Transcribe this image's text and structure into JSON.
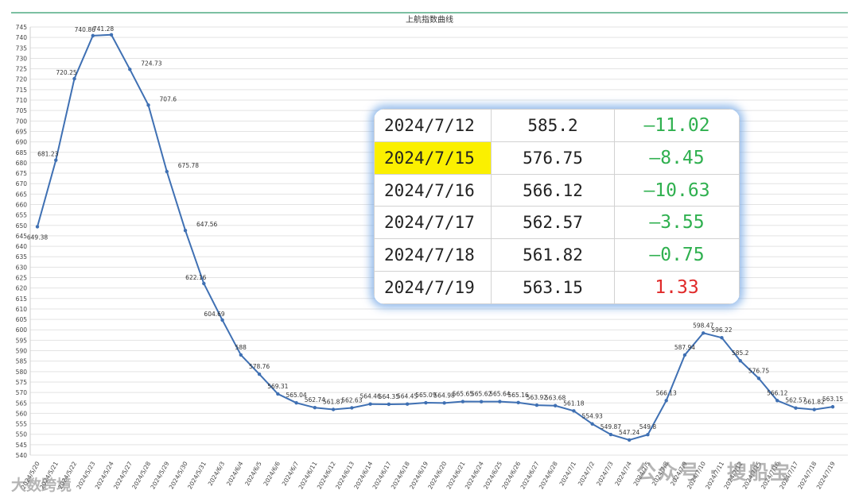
{
  "chart_data": {
    "type": "line",
    "title": "上航指数曲线",
    "y_axis": {
      "min": 540,
      "max": 745,
      "step": 5
    },
    "grid": true,
    "x": [
      "2024/5/20",
      "2024/5/21",
      "2024/5/22",
      "2024/5/23",
      "2024/5/24",
      "2024/5/27",
      "2024/5/28",
      "2024/5/29",
      "2024/5/30",
      "2024/5/31",
      "2024/6/3",
      "2024/6/4",
      "2024/6/5",
      "2024/6/6",
      "2024/6/7",
      "2024/6/11",
      "2024/6/12",
      "2024/6/13",
      "2024/6/14",
      "2024/6/17",
      "2024/6/18",
      "2024/6/19",
      "2024/6/20",
      "2024/6/21",
      "2024/6/24",
      "2024/6/25",
      "2024/6/26",
      "2024/6/27",
      "2024/6/28",
      "2024/7/1",
      "2024/7/2",
      "2024/7/3",
      "2024/7/4",
      "2024/7/5",
      "2024/7/8",
      "2024/7/9",
      "2024/7/10",
      "2024/7/11",
      "2024/7/12",
      "2024/7/15",
      "2024/7/16",
      "2024/7/17",
      "2024/7/18",
      "2024/7/19"
    ],
    "series": [
      {
        "color": "#3f70b3",
        "values": [
          649.38,
          681.23,
          720.25,
          740.86,
          741.28,
          724.73,
          707.6,
          675.78,
          647.56,
          622.16,
          604.69,
          588,
          578.76,
          569.31,
          565.04,
          562.74,
          561.87,
          562.63,
          564.46,
          564.35,
          564.45,
          565.09,
          564.98,
          565.65,
          565.62,
          565.64,
          565.16,
          563.92,
          563.68,
          561.18,
          554.93,
          549.87,
          547.24,
          549.8,
          566.13,
          587.94,
          598.47,
          596.22,
          585.2,
          576.75,
          566.12,
          562.57,
          561.82,
          563.15
        ],
        "labels": [
          "649.38",
          "681.23",
          "720.25",
          "740.86",
          "741.28",
          "724.73",
          "707.6",
          "675.78",
          "647.56",
          "622.16",
          "604.69",
          "588",
          "578.76",
          "569.31",
          "565.04",
          "562.74",
          "561.87",
          "562.63",
          "564.46",
          "564.35",
          "564.45",
          "565.09",
          "564.98",
          "565.65",
          "565.62",
          "565.64",
          "565.16",
          "563.92",
          "563.68",
          "561.18",
          "554.93",
          "549.87",
          "547.24",
          "549.8",
          "566.13",
          "587.94",
          "598.47",
          "596.22",
          "585.2",
          "576.75",
          "566.12",
          "562.57",
          "561.82",
          "563.15"
        ]
      }
    ]
  },
  "table": {
    "rows": [
      {
        "date": "2024/7/12",
        "value": "585.2",
        "change": "—11.02",
        "change_color": "#2fb04f",
        "highlight": false
      },
      {
        "date": "2024/7/15",
        "value": "576.75",
        "change": "—8.45",
        "change_color": "#2fb04f",
        "highlight": true
      },
      {
        "date": "2024/7/16",
        "value": "566.12",
        "change": "—10.63",
        "change_color": "#2fb04f",
        "highlight": false
      },
      {
        "date": "2024/7/17",
        "value": "562.57",
        "change": "—3.55",
        "change_color": "#2fb04f",
        "highlight": false
      },
      {
        "date": "2024/7/18",
        "value": "561.82",
        "change": "—0.75",
        "change_color": "#2fb04f",
        "highlight": false
      },
      {
        "date": "2024/7/19",
        "value": "563.15",
        "change": "1.33",
        "change_color": "#e02a2a",
        "highlight": false
      }
    ]
  },
  "watermarks": {
    "left": "大数跨境",
    "right": "公众号 · 搜船宝"
  }
}
